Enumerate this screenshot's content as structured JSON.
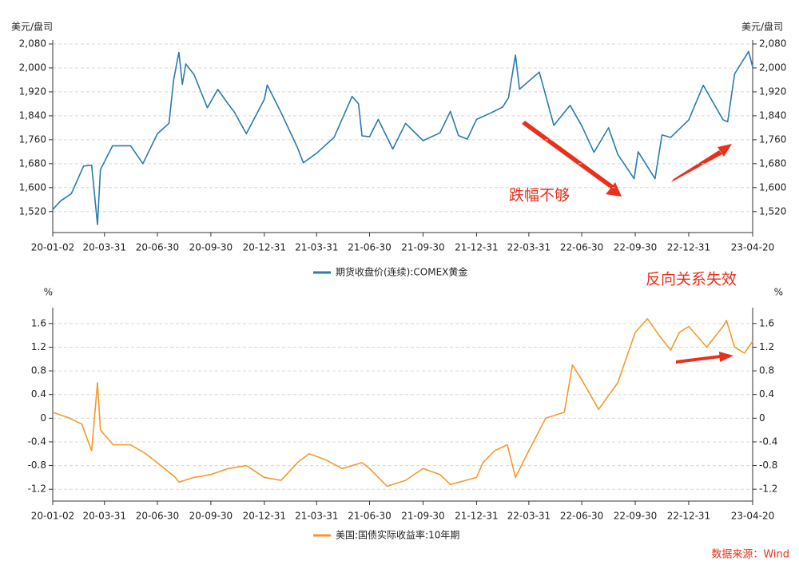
{
  "chart_data": [
    {
      "type": "line",
      "y_label": "美元/盘司",
      "x": [
        "20-01-02",
        "20-01-15",
        "20-02-03",
        "20-02-24",
        "20-03-09",
        "20-03-19",
        "20-03-24",
        "20-04-14",
        "20-05-15",
        "20-06-05",
        "20-06-30",
        "20-07-20",
        "20-07-28",
        "20-08-06",
        "20-08-12",
        "20-08-18",
        "20-09-01",
        "20-09-24",
        "20-10-12",
        "20-10-30",
        "20-11-09",
        "20-11-30",
        "20-12-31",
        "21-01-05",
        "21-01-29",
        "21-02-26",
        "21-03-08",
        "21-03-31",
        "21-04-30",
        "21-05-31",
        "21-06-11",
        "21-06-17",
        "21-06-30",
        "21-07-15",
        "21-08-09",
        "21-08-31",
        "21-09-30",
        "21-10-29",
        "21-11-16",
        "21-11-30",
        "21-12-15",
        "21-12-31",
        "22-01-25",
        "22-02-14",
        "22-02-24",
        "22-03-08",
        "22-03-15",
        "22-04-18",
        "22-05-13",
        "22-06-10",
        "22-06-30",
        "22-07-21",
        "22-08-15",
        "22-08-31",
        "22-09-28",
        "22-10-05",
        "22-11-03",
        "22-11-15",
        "22-11-30",
        "22-12-31",
        "23-01-25",
        "23-02-28",
        "23-03-08",
        "23-03-20",
        "23-04-13",
        "23-04-20"
      ],
      "series": [
        {
          "name": "期货收盘价(连续):COMEX黄金",
          "color": "#2a7bab",
          "values": [
            1527,
            1555,
            1580,
            1672,
            1675,
            1477,
            1660,
            1740,
            1740,
            1680,
            1780,
            1815,
            1960,
            2052,
            1945,
            2013,
            1978,
            1867,
            1928,
            1879,
            1854,
            1780,
            1895,
            1943,
            1850,
            1734,
            1683,
            1715,
            1768,
            1905,
            1880,
            1773,
            1770,
            1828,
            1729,
            1815,
            1757,
            1783,
            1855,
            1774,
            1762,
            1828,
            1850,
            1869,
            1900,
            2043,
            1929,
            1986,
            1808,
            1875,
            1807,
            1718,
            1800,
            1711,
            1630,
            1720,
            1630,
            1776,
            1768,
            1826,
            1942,
            1827,
            1820,
            1980,
            2055,
            2003
          ]
        }
      ],
      "xlim": [
        "20-01-02",
        "23-04-20"
      ],
      "xticks": [
        "20-01-02",
        "20-03-31",
        "20-06-30",
        "20-09-30",
        "20-12-31",
        "21-03-31",
        "21-06-30",
        "21-09-30",
        "21-12-31",
        "22-03-31",
        "22-06-30",
        "22-09-30",
        "22-12-31",
        "23-04-20"
      ],
      "ylim": [
        1450,
        2080
      ],
      "yticks": [
        {
          "value": 1520,
          "label": "1,520"
        },
        {
          "value": 1600,
          "label": "1,600"
        },
        {
          "value": 1680,
          "label": "1,680"
        },
        {
          "value": 1760,
          "label": "1,760"
        },
        {
          "value": 1840,
          "label": "1,840"
        },
        {
          "value": 1920,
          "label": "1,920"
        },
        {
          "value": 2000,
          "label": "2,000"
        },
        {
          "value": 2080,
          "label": "2,080"
        }
      ],
      "grid": true,
      "annotations": [
        "跌幅不够",
        "反向关系失效"
      ]
    },
    {
      "type": "line",
      "y_label": "%",
      "x": [
        "20-01-02",
        "20-01-31",
        "20-02-21",
        "20-03-09",
        "20-03-19",
        "20-03-24",
        "20-04-15",
        "20-05-15",
        "20-06-10",
        "20-07-06",
        "20-07-31",
        "20-08-06",
        "20-09-01",
        "20-09-30",
        "20-10-30",
        "20-11-30",
        "20-12-31",
        "21-01-29",
        "21-02-26",
        "21-03-18",
        "21-04-15",
        "21-05-14",
        "21-06-17",
        "21-06-30",
        "21-07-30",
        "21-08-31",
        "21-09-30",
        "21-10-29",
        "21-11-16",
        "21-12-31",
        "22-01-11",
        "22-01-31",
        "22-02-22",
        "22-03-08",
        "22-03-31",
        "22-04-29",
        "22-05-31",
        "22-06-14",
        "22-06-30",
        "22-07-29",
        "22-08-31",
        "22-09-30",
        "22-10-21",
        "22-11-10",
        "22-11-30",
        "22-12-15",
        "22-12-31",
        "23-01-31",
        "23-02-28",
        "23-03-06",
        "23-03-20",
        "23-04-06",
        "23-04-20"
      ],
      "series": [
        {
          "name": "美国:国债实际收益率:10年期",
          "color": "#f39a2c",
          "values": [
            0.1,
            0.0,
            -0.1,
            -0.55,
            0.6,
            -0.2,
            -0.45,
            -0.45,
            -0.6,
            -0.8,
            -1.0,
            -1.08,
            -1.0,
            -0.95,
            -0.85,
            -0.8,
            -1.0,
            -1.05,
            -0.75,
            -0.6,
            -0.7,
            -0.85,
            -0.75,
            -0.85,
            -1.15,
            -1.05,
            -0.85,
            -0.95,
            -1.12,
            -1.0,
            -0.75,
            -0.55,
            -0.45,
            -1.0,
            -0.55,
            0.0,
            0.1,
            0.9,
            0.65,
            0.15,
            0.6,
            1.45,
            1.68,
            1.4,
            1.15,
            1.45,
            1.55,
            1.2,
            1.55,
            1.65,
            1.2,
            1.1,
            1.3
          ]
        }
      ],
      "xlim": [
        "20-01-02",
        "23-04-20"
      ],
      "xticks": [
        "20-01-02",
        "20-03-31",
        "20-06-30",
        "20-09-30",
        "20-12-31",
        "21-03-31",
        "21-06-30",
        "21-09-30",
        "21-12-31",
        "22-03-31",
        "22-06-30",
        "22-09-30",
        "22-12-31",
        "23-04-20"
      ],
      "ylim": [
        -1.4,
        1.8
      ],
      "yticks": [
        -1.2,
        -0.8,
        -0.4,
        0,
        0.4,
        0.8,
        1.2,
        1.6
      ],
      "grid": true
    }
  ],
  "source": "数据来源：Wind"
}
